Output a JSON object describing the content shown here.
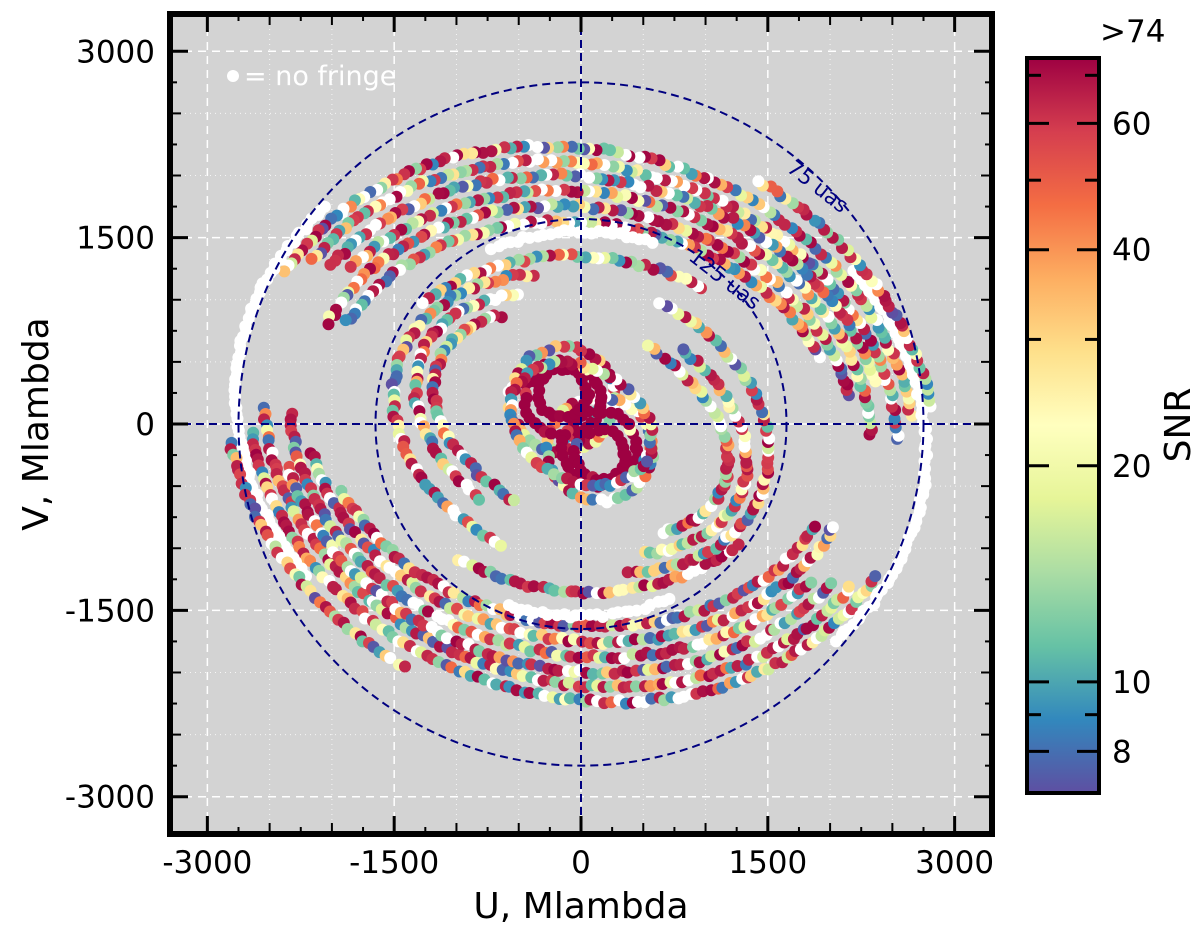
{
  "chart_data": {
    "type": "scatter",
    "xlabel": "U, Mlambda",
    "ylabel": "V, Mlambda",
    "xlim": [
      -3300,
      3300
    ],
    "ylim": [
      -3300,
      3300
    ],
    "x_ticks": [
      -3000,
      -1500,
      0,
      1500,
      3000
    ],
    "y_ticks": [
      3000,
      1500,
      0,
      -1500,
      -3000
    ],
    "x_tick_labels": [
      "-3000",
      "-1500",
      "0",
      "1500",
      "3000"
    ],
    "y_tick_labels": [
      "3000",
      "1500",
      "0",
      "-1500",
      "-3000"
    ],
    "grid": true,
    "background_color": "#d3d3d3",
    "grid_color": "#ffffff",
    "no_fringe_note": "= no fringe",
    "no_fringe_color": "#ffffff",
    "reference_rings": [
      {
        "label": "75 uas",
        "radius": 2750
      },
      {
        "label": "125 uas",
        "radius": 1650
      }
    ],
    "ring_color": "#000080",
    "colorbar": {
      "label": "SNR",
      "top_label": ">74",
      "ticks": [
        {
          "value": 60,
          "label": "60"
        },
        {
          "value": 40,
          "label": "40"
        },
        {
          "value": 20,
          "label": "20"
        },
        {
          "value": 10,
          "label": "10"
        },
        {
          "value": 8,
          "label": "8"
        }
      ],
      "minor_ticks": [
        7,
        9,
        30,
        50,
        70
      ],
      "range": [
        7,
        74
      ],
      "scale": "log",
      "colormap": [
        "#5e4fa2",
        "#3288bd",
        "#66c2a5",
        "#abdda4",
        "#e6f598",
        "#ffffbf",
        "#fee08b",
        "#fdae61",
        "#f46d43",
        "#d53e4f",
        "#9e0142"
      ]
    },
    "tracks": [
      {
        "a": 2700,
        "b": 2200,
        "phi": -15,
        "start": 200,
        "end": 345,
        "color": "mixed"
      },
      {
        "a": 2700,
        "b": 2200,
        "phi": -15,
        "start": 20,
        "end": 165,
        "color": "mixed"
      },
      {
        "a": 2580,
        "b": 2080,
        "phi": -15,
        "start": 195,
        "end": 340,
        "color": "mixed"
      },
      {
        "a": 2580,
        "b": 2080,
        "phi": -15,
        "start": 15,
        "end": 160,
        "color": "mixed"
      },
      {
        "a": 2460,
        "b": 1980,
        "phi": -12,
        "start": 205,
        "end": 335,
        "color": "mixed"
      },
      {
        "a": 2460,
        "b": 1980,
        "phi": -12,
        "start": 25,
        "end": 155,
        "color": "mixed"
      },
      {
        "a": 2340,
        "b": 1860,
        "phi": -10,
        "start": 190,
        "end": 330,
        "color": "mixed"
      },
      {
        "a": 2340,
        "b": 1860,
        "phi": -10,
        "start": 10,
        "end": 150,
        "color": "mixed"
      },
      {
        "a": 2220,
        "b": 1740,
        "phi": -10,
        "start": 200,
        "end": 345,
        "color": "mixed"
      },
      {
        "a": 2220,
        "b": 1740,
        "phi": -10,
        "start": 20,
        "end": 165,
        "color": "mixed"
      },
      {
        "a": 2100,
        "b": 1620,
        "phi": -8,
        "start": 210,
        "end": 340,
        "color": "mixed"
      },
      {
        "a": 2100,
        "b": 1620,
        "phi": -8,
        "start": 30,
        "end": 160,
        "color": "mixed"
      },
      {
        "a": 2800,
        "b": 2300,
        "phi": -15,
        "start": 150,
        "end": 230,
        "color": "white"
      },
      {
        "a": 2800,
        "b": 2300,
        "phi": -15,
        "start": 330,
        "end": 410,
        "color": "white"
      },
      {
        "a": 2900,
        "b": 2380,
        "phi": -18,
        "start": 25,
        "end": 75,
        "color": "mixed"
      },
      {
        "a": 2900,
        "b": 2380,
        "phi": -18,
        "start": 205,
        "end": 255,
        "color": "mixed"
      },
      {
        "a": 1750,
        "b": 1350,
        "phi": -5,
        "start": 60,
        "end": 140,
        "color": "mixed"
      },
      {
        "a": 1750,
        "b": 1350,
        "phi": -5,
        "start": 240,
        "end": 320,
        "color": "mixed"
      },
      {
        "a": 1550,
        "b": 1150,
        "phi": -20,
        "start": 120,
        "end": 260,
        "color": "mixed"
      },
      {
        "a": 1550,
        "b": 1150,
        "phi": -20,
        "start": 300,
        "end": 440,
        "color": "mixed"
      },
      {
        "a": 1400,
        "b": 950,
        "phi": -25,
        "start": 130,
        "end": 250,
        "color": "mixed"
      },
      {
        "a": 1400,
        "b": 950,
        "phi": -25,
        "start": 310,
        "end": 430,
        "color": "mixed"
      },
      {
        "a": 1250,
        "b": 800,
        "phi": -25,
        "start": 140,
        "end": 260,
        "color": "mixed"
      },
      {
        "a": 1250,
        "b": 800,
        "phi": -25,
        "start": 320,
        "end": 440,
        "color": "mixed"
      },
      {
        "a": 1700,
        "b": 1550,
        "phi": 0,
        "start": 70,
        "end": 115,
        "color": "white"
      },
      {
        "a": 1700,
        "b": 1550,
        "phi": 0,
        "start": 250,
        "end": 295,
        "color": "white"
      },
      {
        "a": 420,
        "b": 420,
        "phi": 0,
        "cx": -150,
        "cy": 200,
        "start": 0,
        "end": 360,
        "color": "mixed"
      },
      {
        "a": 420,
        "b": 420,
        "phi": 0,
        "cx": 150,
        "cy": -200,
        "start": 0,
        "end": 360,
        "color": "mixed"
      },
      {
        "a": 300,
        "b": 300,
        "phi": 0,
        "cx": -150,
        "cy": 200,
        "start": 0,
        "end": 360,
        "color": "red"
      },
      {
        "a": 300,
        "b": 300,
        "phi": 0,
        "cx": 150,
        "cy": -200,
        "start": 0,
        "end": 360,
        "color": "red"
      },
      {
        "a": 200,
        "b": 200,
        "phi": 0,
        "cx": -150,
        "cy": 250,
        "start": 0,
        "end": 360,
        "color": "red"
      },
      {
        "a": 200,
        "b": 200,
        "phi": 0,
        "cx": 150,
        "cy": -250,
        "start": 0,
        "end": 360,
        "color": "red"
      },
      {
        "a": 600,
        "b": 450,
        "phi": -30,
        "start": 0,
        "end": 360,
        "color": "mixed"
      }
    ]
  }
}
